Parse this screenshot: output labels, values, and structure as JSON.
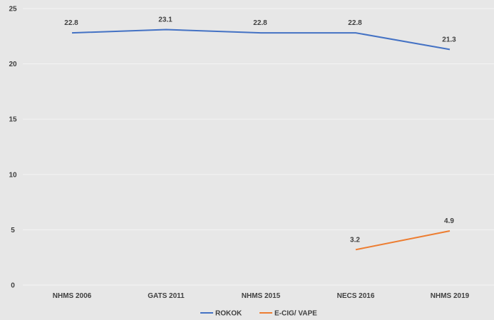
{
  "chart_data": {
    "type": "line",
    "categories": [
      "NHMS 2006",
      "GATS 2011",
      "NHMS 2015",
      "NECS 2016",
      "NHMS 2019"
    ],
    "ylim": [
      0,
      25
    ],
    "yticks": [
      0,
      5,
      10,
      15,
      20,
      25
    ],
    "grid": true,
    "legend_position": "bottom",
    "series": [
      {
        "name": "ROKOK",
        "color": "#4472c4",
        "values": [
          22.8,
          23.1,
          22.8,
          22.8,
          21.3
        ]
      },
      {
        "name": "E-CIG/ VAPE",
        "color": "#ed7d31",
        "values": [
          null,
          null,
          null,
          3.2,
          4.9
        ]
      }
    ]
  }
}
